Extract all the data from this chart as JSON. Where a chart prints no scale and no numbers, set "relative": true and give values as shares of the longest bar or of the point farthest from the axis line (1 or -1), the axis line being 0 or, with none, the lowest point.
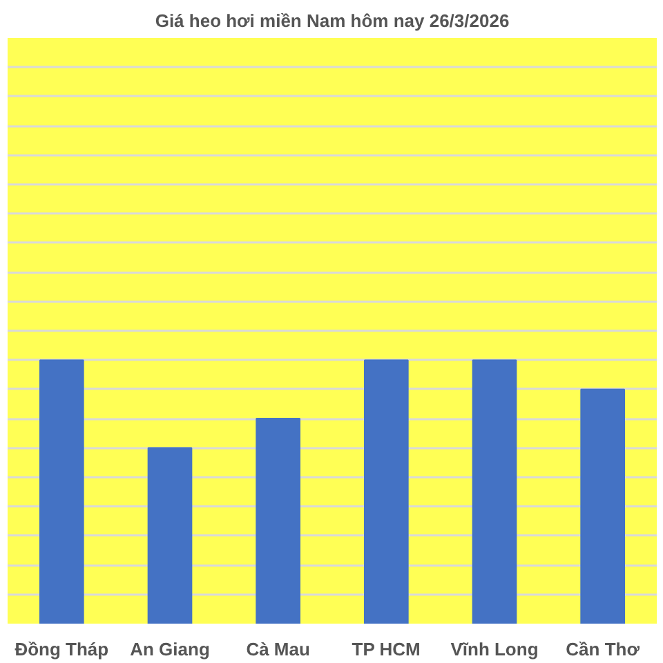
{
  "chart_data": {
    "type": "bar",
    "title": "Giá heo hơi miền Nam hôm nay 26/3/2026",
    "categories": [
      "Đồng Tháp",
      "An Giang",
      "Cà Mau",
      "TP HCM",
      "Vĩnh Long",
      "Cần Thơ"
    ],
    "values": [
      1,
      0.667,
      0.778,
      1,
      1,
      0.889
    ],
    "color": "#4472c4",
    "relative": true,
    "grid": "y"
  }
}
